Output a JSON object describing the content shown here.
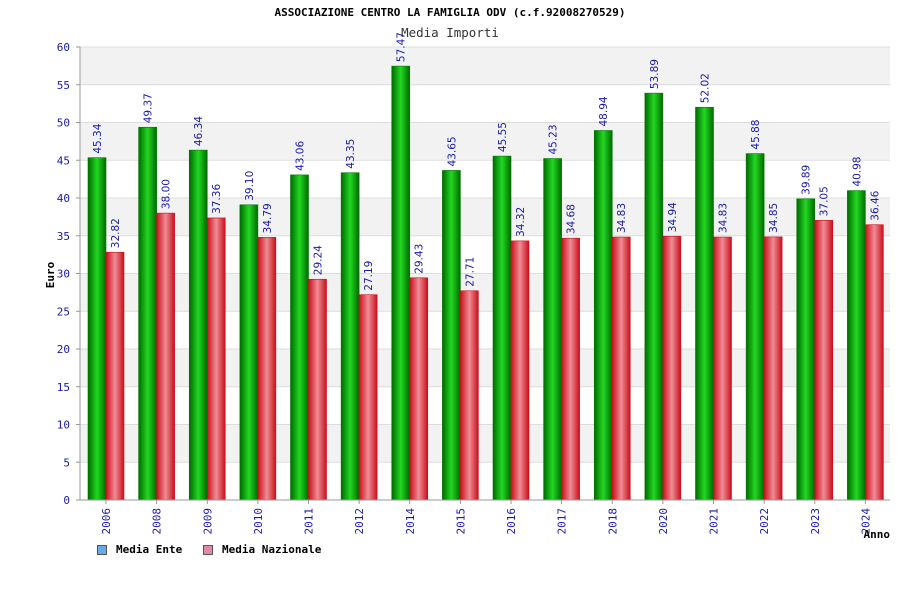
{
  "chart_data": {
    "type": "bar",
    "title": "ASSOCIAZIONE CENTRO LA FAMIGLIA ODV (c.f.92008270529)",
    "subtitle": "Media Importi",
    "xlabel": "Anno",
    "ylabel": "Euro",
    "ylim": [
      0,
      60
    ],
    "yticks": [
      0,
      5,
      10,
      15,
      20,
      25,
      30,
      35,
      40,
      45,
      50,
      55,
      60
    ],
    "grid": true,
    "legend_position": "bottom-left",
    "categories": [
      "2006",
      "2008",
      "2009",
      "2010",
      "2011",
      "2012",
      "2014",
      "2015",
      "2016",
      "2017",
      "2018",
      "2020",
      "2021",
      "2022",
      "2023",
      "2024"
    ],
    "series": [
      {
        "name": "Media Ente",
        "color": "#00b000",
        "legend_color": "#6aa9e8",
        "values": [
          45.34,
          49.37,
          46.34,
          39.1,
          43.06,
          43.35,
          57.47,
          43.65,
          45.55,
          45.23,
          48.94,
          53.89,
          52.02,
          45.88,
          39.89,
          40.98
        ],
        "labels": [
          "45.34",
          "49.37",
          "46.34",
          "39.10",
          "43.06",
          "43.35",
          "57.47",
          "43.65",
          "45.55",
          "45.23",
          "48.94",
          "53.89",
          "52.02",
          "45.88",
          "39.89",
          "40.98"
        ]
      },
      {
        "name": "Media Nazionale",
        "color": "#e0202a",
        "legend_color": "#e08aa6",
        "values": [
          32.82,
          38.0,
          37.36,
          34.79,
          29.24,
          27.19,
          29.43,
          27.71,
          34.32,
          34.68,
          34.83,
          34.94,
          34.83,
          34.85,
          37.05,
          36.46
        ],
        "labels": [
          "32.82",
          "38.00",
          "37.36",
          "34.79",
          "29.24",
          "27.19",
          "29.43",
          "27.71",
          "34.32",
          "34.68",
          "34.83",
          "34.94",
          "34.83",
          "34.85",
          "37.05",
          "36.46"
        ]
      }
    ]
  }
}
